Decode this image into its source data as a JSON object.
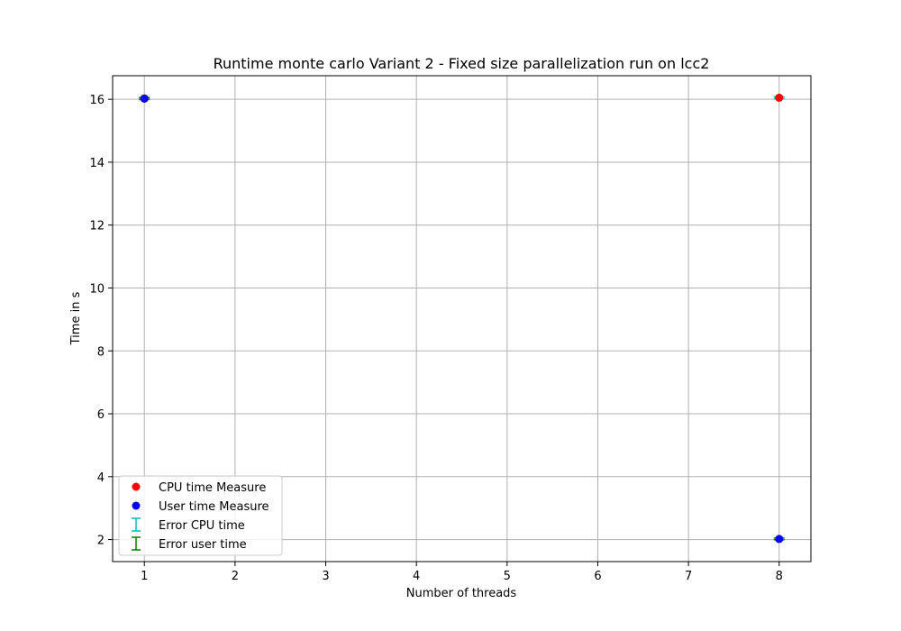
{
  "chart_data": {
    "type": "scatter",
    "title": "Runtime monte carlo Variant 2 - Fixed size parallelization run on lcc2",
    "xlabel": "Number of threads",
    "ylabel": "Time in s",
    "xlim": [
      0.65,
      8.35
    ],
    "ylim": [
      1.3,
      16.75
    ],
    "xticks": [
      1,
      2,
      3,
      4,
      5,
      6,
      7,
      8
    ],
    "yticks": [
      2,
      4,
      6,
      8,
      10,
      12,
      14,
      16
    ],
    "grid": true,
    "legend_position": "lower-left",
    "series": [
      {
        "name": "CPU time Measure",
        "kind": "points",
        "color": "#ff0000",
        "x": [
          1,
          8
        ],
        "y": [
          16.03,
          16.05
        ]
      },
      {
        "name": "User time Measure",
        "kind": "points",
        "color": "#0000ff",
        "x": [
          1,
          8
        ],
        "y": [
          16.02,
          2.02
        ]
      },
      {
        "name": "Error CPU time",
        "kind": "errorbar",
        "color": "#00bfbf",
        "x": [
          1,
          8
        ],
        "y": [
          16.03,
          16.05
        ],
        "yerr": [
          0.02,
          0.02
        ]
      },
      {
        "name": "Error user time",
        "kind": "errorbar",
        "color": "#008000",
        "x": [
          1,
          8
        ],
        "y": [
          16.02,
          2.02
        ],
        "yerr": [
          0.02,
          0.02
        ]
      }
    ]
  }
}
